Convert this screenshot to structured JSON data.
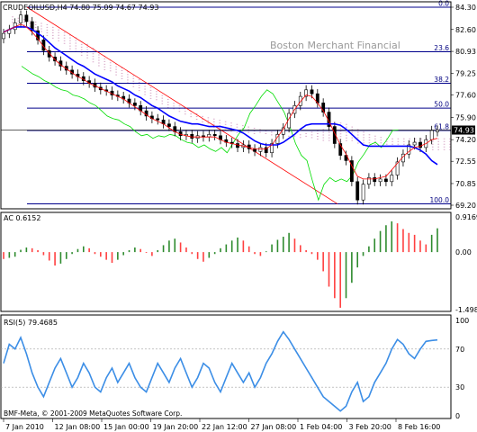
{
  "colors": {
    "background": "#ffffff",
    "frame": "#000000",
    "candle": "#000000",
    "fibo": "#00008b",
    "fibo_label": "#000080",
    "ichimoku_kumo": "#d8a8c8",
    "ichimoku_kumo_alt": "#f0c890",
    "tenkan": "#ff0000",
    "kijun": "#0000ff",
    "chikou": "#00dd00",
    "trend_line": "#ff0000",
    "price_hline": "#000000",
    "ac_up": "#2e8b2e",
    "ac_down": "#ff4040",
    "rsi_line": "#3c8ee6",
    "rsi_level": "#a0a0a0",
    "price_tag_bg": "#000000",
    "price_tag_fg": "#ffffff"
  },
  "header": {
    "symbol_label": "CRUDEOILUSD,H4  74.80 75.09 74.67 74.93",
    "watermark": "Boston Merchant Financial",
    "current_price": "74.93"
  },
  "fibonacci_levels": [
    "0.0",
    "23.6",
    "38.2",
    "50.0",
    "61.8",
    "100.0"
  ],
  "ac": {
    "label": "AC 0.6152"
  },
  "rsi": {
    "label": "RSI(5) 79.4685"
  },
  "footer": {
    "copyright": "BMF-Meta, © 2001-2009 MetaQuotes Software Corp."
  },
  "chart_data": [
    {
      "type": "candlestick",
      "title": "CRUDEOILUSD,H4",
      "timeframe": "H4",
      "ylim": [
        69.2,
        84.3
      ],
      "y_ticks": [
        "84.30",
        "82.60",
        "80.93",
        "79.25",
        "77.60",
        "75.90",
        "74.20",
        "72.55",
        "70.85",
        "69.20"
      ],
      "x_ticks": [
        "7 Jan 2010",
        "12 Jan 08:00",
        "15 Jan 00:00",
        "19 Jan 20:00",
        "22 Jan 12:00",
        "27 Jan 08:00",
        "1 Feb 04:00",
        "3 Feb 20:00",
        "8 Feb 16:00"
      ],
      "close": [
        82.3,
        82.6,
        83.1,
        83.7,
        83.2,
        82.5,
        81.8,
        81.0,
        80.5,
        80.2,
        79.8,
        79.5,
        79.2,
        79.0,
        78.7,
        78.5,
        78.2,
        78.0,
        77.9,
        77.6,
        77.5,
        77.3,
        77.0,
        76.8,
        76.4,
        76.0,
        75.8,
        75.7,
        75.4,
        75.2,
        74.8,
        74.5,
        74.6,
        74.3,
        74.5,
        74.4,
        74.6,
        74.5,
        74.2,
        74.0,
        73.9,
        73.6,
        73.8,
        73.5,
        73.3,
        73.6,
        73.2,
        73.9,
        74.6,
        75.1,
        76.2,
        76.8,
        77.5,
        78.0,
        77.7,
        77.0,
        76.3,
        75.2,
        73.9,
        73.0,
        72.6,
        71.0,
        69.6,
        70.8,
        71.3,
        71.0,
        71.2,
        71.0,
        71.5,
        72.5,
        73.1,
        73.8,
        74.0,
        73.6,
        74.2,
        74.9,
        74.93
      ],
      "open": [
        81.9,
        82.3,
        82.6,
        83.1,
        83.7,
        83.2,
        82.5,
        81.8,
        81.0,
        80.5,
        80.2,
        79.8,
        79.5,
        79.2,
        79.0,
        78.7,
        78.5,
        78.2,
        78.0,
        77.9,
        77.6,
        77.5,
        77.3,
        77.0,
        76.8,
        76.4,
        76.0,
        75.8,
        75.7,
        75.4,
        75.2,
        74.8,
        74.5,
        74.6,
        74.3,
        74.5,
        74.4,
        74.6,
        74.5,
        74.2,
        74.0,
        73.9,
        73.6,
        73.8,
        73.5,
        73.3,
        73.6,
        73.2,
        73.9,
        74.6,
        75.1,
        76.2,
        76.8,
        77.5,
        78.0,
        77.7,
        77.0,
        76.3,
        75.2,
        73.9,
        73.0,
        72.6,
        71.0,
        69.6,
        70.8,
        71.3,
        71.0,
        71.2,
        71.0,
        71.5,
        72.5,
        73.1,
        73.8,
        74.0,
        73.6,
        74.2,
        74.8
      ],
      "fibonacci": [
        {
          "level": "0.0",
          "price": 84.3
        },
        {
          "level": "23.6",
          "price": 80.9
        },
        {
          "level": "38.2",
          "price": 78.5
        },
        {
          "level": "50.0",
          "price": 76.6
        },
        {
          "level": "61.8",
          "price": 74.9
        },
        {
          "level": "100.0",
          "price": 69.3
        }
      ],
      "ichimoku": {
        "tenkan": [
          82.4,
          82.6,
          82.8,
          83.0,
          82.8,
          82.4,
          81.9,
          81.3,
          80.8,
          80.3,
          79.9,
          79.6,
          79.3,
          79.0,
          78.8,
          78.5,
          78.3,
          78.1,
          77.9,
          77.7,
          77.5,
          77.3,
          77.0,
          76.7,
          76.4,
          76.1,
          75.8,
          75.6,
          75.4,
          75.1,
          74.8,
          74.6,
          74.5,
          74.4,
          74.4,
          74.4,
          74.4,
          74.4,
          74.2,
          74.0,
          73.9,
          73.8,
          73.7,
          73.6,
          73.5,
          73.5,
          73.5,
          73.8,
          74.4,
          75.0,
          75.8,
          76.5,
          77.1,
          77.6,
          77.5,
          77.0,
          76.4,
          75.6,
          74.7,
          73.8,
          73.1,
          72.2,
          71.4,
          71.2,
          71.2,
          71.2,
          71.3,
          71.4,
          71.9,
          72.4,
          72.9,
          73.3,
          73.6,
          73.7,
          73.9,
          74.2,
          74.3
        ],
        "kijun": [
          82.4,
          82.6,
          82.8,
          82.8,
          82.8,
          82.6,
          82.3,
          82.0,
          81.6,
          81.2,
          80.9,
          80.6,
          80.3,
          80.0,
          79.8,
          79.5,
          79.2,
          79.0,
          78.8,
          78.6,
          78.3,
          78.1,
          77.9,
          77.6,
          77.4,
          77.1,
          76.8,
          76.6,
          76.3,
          76.0,
          75.8,
          75.6,
          75.5,
          75.4,
          75.4,
          75.3,
          75.2,
          75.2,
          75.2,
          75.1,
          75.0,
          74.9,
          74.7,
          74.4,
          74.1,
          73.9,
          73.8,
          73.8,
          73.8,
          74.0,
          74.3,
          74.6,
          75.0,
          75.3,
          75.4,
          75.4,
          75.4,
          75.4,
          75.4,
          75.3,
          75.0,
          74.6,
          74.2,
          73.8,
          73.7,
          73.7,
          73.7,
          73.7,
          73.7,
          73.7,
          73.7,
          73.7,
          73.6,
          73.4,
          73.1,
          72.6,
          72.3
        ],
        "senkou_a": [
          83.0,
          82.9,
          82.7,
          82.6,
          82.4,
          82.3,
          82.1,
          81.9,
          81.6,
          81.4,
          81.1,
          80.9,
          80.6,
          80.4,
          80.1,
          79.8,
          79.5,
          79.3,
          79.0,
          78.7,
          78.4,
          78.1,
          77.8,
          77.6,
          77.3,
          77.1,
          76.8,
          76.6,
          76.4,
          76.2,
          76.0,
          75.8,
          75.6,
          75.4,
          75.2,
          75.1,
          75.0,
          74.9,
          74.8,
          74.7,
          74.7,
          74.6,
          74.6,
          74.6,
          74.5,
          74.5,
          74.5,
          74.5,
          74.4,
          74.4,
          74.3,
          74.3,
          74.2,
          74.2,
          74.1,
          74.1,
          74.0,
          74.0,
          74.0,
          74.0,
          73.9,
          73.9,
          73.9,
          73.8,
          73.8,
          73.8,
          73.7,
          73.7,
          73.7,
          73.6,
          73.6,
          73.5,
          73.5,
          73.4,
          73.4,
          73.3,
          73.3
        ],
        "senkou_b": [
          83.6,
          83.5,
          83.4,
          83.3,
          83.2,
          83.1,
          83.0,
          82.8,
          82.6,
          82.4,
          82.2,
          82.0,
          81.7,
          81.5,
          81.2,
          80.9,
          80.6,
          80.3,
          80.0,
          79.7,
          79.4,
          79.1,
          78.8,
          78.5,
          78.2,
          77.9,
          77.6,
          77.3,
          77.0,
          76.8,
          76.6,
          76.4,
          76.2,
          76.0,
          75.9,
          75.8,
          75.7,
          75.6,
          75.5,
          75.4,
          75.3,
          75.2,
          75.1,
          75.0,
          74.9,
          74.8,
          74.7,
          74.6,
          74.5,
          74.5,
          74.6,
          74.7,
          74.8,
          74.9,
          75.0,
          75.2,
          75.4,
          75.5,
          75.4,
          75.2,
          75.0,
          74.8,
          74.6,
          74.5,
          74.4,
          74.3,
          74.3,
          74.3,
          74.3,
          74.3,
          74.3,
          74.3,
          74.3,
          74.3,
          74.3,
          74.3,
          74.3
        ],
        "chikou": [
          79.8,
          79.5,
          79.2,
          79.0,
          78.7,
          78.5,
          78.2,
          78.0,
          77.9,
          77.6,
          77.5,
          77.3,
          77.0,
          76.8,
          76.4,
          76.0,
          75.8,
          75.7,
          75.4,
          75.2,
          74.8,
          74.5,
          74.6,
          74.3,
          74.5,
          74.4,
          74.6,
          74.5,
          74.2,
          74.0,
          73.9,
          73.6,
          73.8,
          73.5,
          73.3,
          73.6,
          73.2,
          73.9,
          74.6,
          75.1,
          76.2,
          76.8,
          77.5,
          78.0,
          77.7,
          77.0,
          76.3,
          75.2,
          73.9,
          73.0,
          72.6,
          71.0,
          69.6,
          70.8,
          71.3,
          71.0,
          71.2,
          71.0,
          71.5,
          72.5,
          73.1,
          73.8,
          74.0,
          73.6,
          74.2,
          74.9,
          74.93
        ]
      },
      "trend_line": {
        "from_price": 84.3,
        "to_price": 69.3
      }
    },
    {
      "type": "bar",
      "title": "AC 0.6152",
      "ylim": [
        -1.4981,
        0.9169
      ],
      "y_ticks": [
        "0.9169",
        "0.00",
        "-1.4981"
      ],
      "values": [
        -0.18,
        -0.15,
        -0.12,
        0.06,
        0.12,
        0.1,
        0.05,
        -0.08,
        -0.22,
        -0.35,
        -0.3,
        -0.18,
        -0.05,
        0.08,
        0.15,
        0.1,
        -0.05,
        -0.12,
        -0.2,
        -0.28,
        -0.2,
        -0.08,
        0.05,
        0.12,
        0.08,
        -0.02,
        -0.1,
        0.05,
        0.18,
        0.3,
        0.35,
        0.25,
        0.12,
        -0.05,
        -0.18,
        -0.25,
        -0.15,
        -0.05,
        0.1,
        0.2,
        0.3,
        0.38,
        0.3,
        0.15,
        -0.05,
        -0.1,
        0.02,
        0.2,
        0.32,
        0.4,
        0.5,
        0.35,
        0.18,
        0.05,
        -0.05,
        -0.2,
        -0.5,
        -0.9,
        -1.2,
        -1.45,
        -1.2,
        -0.8,
        -0.4,
        -0.1,
        0.15,
        0.35,
        0.55,
        0.7,
        0.8,
        0.75,
        0.6,
        0.5,
        0.45,
        0.3,
        0.2,
        0.45,
        0.62
      ]
    },
    {
      "type": "line",
      "title": "RSI(5) 79.4685",
      "ylim": [
        0,
        100
      ],
      "y_ticks": [
        "100",
        "70",
        "30",
        "0"
      ],
      "levels": [
        70,
        30
      ],
      "values": [
        55,
        75,
        70,
        82,
        65,
        45,
        30,
        20,
        35,
        50,
        60,
        45,
        30,
        40,
        55,
        45,
        30,
        25,
        40,
        50,
        35,
        45,
        55,
        40,
        30,
        25,
        40,
        55,
        45,
        35,
        50,
        60,
        45,
        30,
        40,
        55,
        50,
        35,
        25,
        40,
        55,
        45,
        35,
        45,
        30,
        40,
        55,
        65,
        78,
        88,
        80,
        70,
        60,
        50,
        40,
        30,
        20,
        15,
        10,
        5,
        10,
        25,
        35,
        15,
        20,
        35,
        45,
        55,
        70,
        80,
        75,
        65,
        60,
        70,
        78,
        79,
        79.5
      ]
    }
  ]
}
